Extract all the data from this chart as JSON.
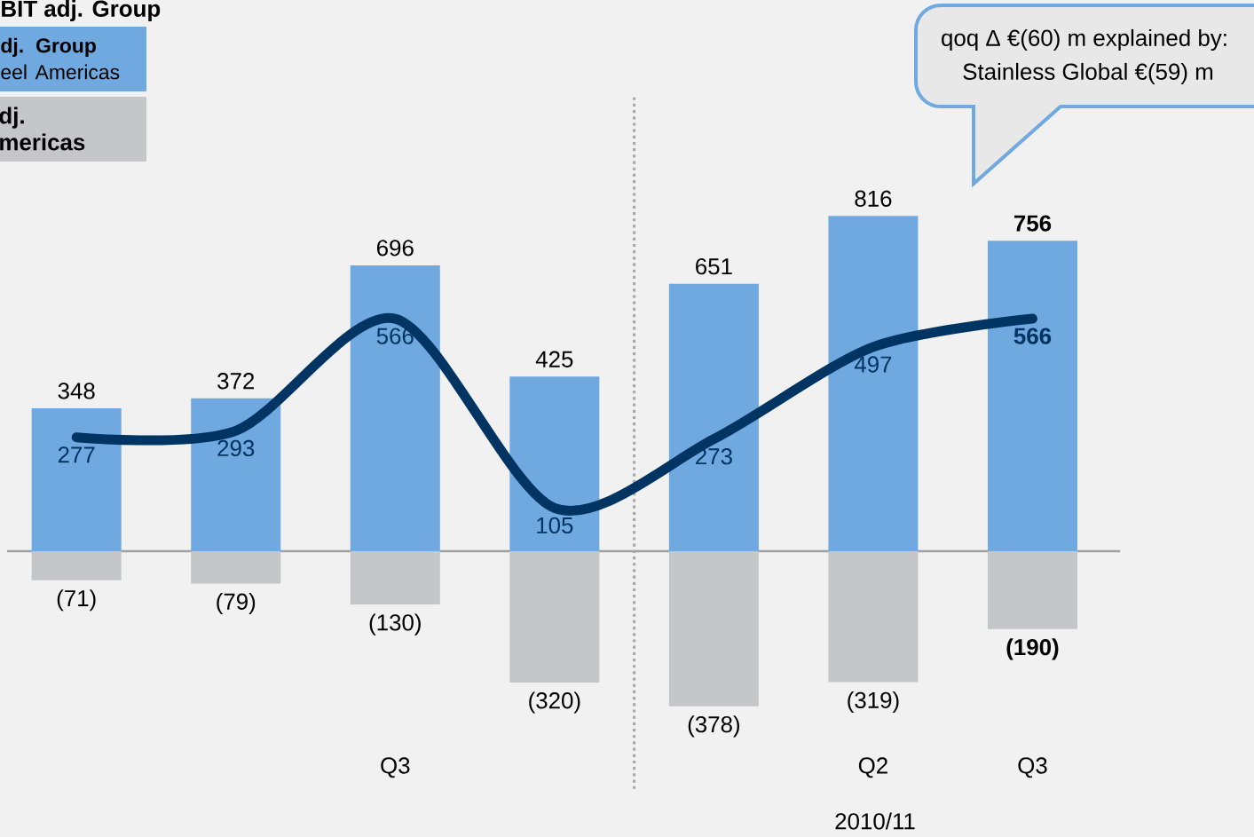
{
  "chart_data": {
    "type": "bar",
    "categories": [
      null,
      null,
      "Q3",
      null,
      null,
      "Q2",
      "Q3"
    ],
    "series": [
      {
        "name": "**dj. Group** eel Americas",
        "color": "#6fa9e0",
        "values": [
          348,
          372,
          696,
          425,
          651,
          816,
          756
        ],
        "value_labels": [
          "348",
          "372",
          "696",
          "425",
          "651",
          "816",
          "**756**"
        ]
      },
      {
        "type": "line",
        "color": "#003462",
        "values": [
          277,
          293,
          566,
          105,
          273,
          497,
          566
        ],
        "value_labels": [
          "277",
          "293",
          "566",
          "105",
          "273",
          "497",
          "**566**"
        ]
      },
      {
        "name": "dj. mericas",
        "color": "#c5c6c8",
        "values": [
          -71,
          -79,
          -130,
          -320,
          -378,
          -319,
          -190
        ],
        "value_labels": [
          "(71)",
          "(79)",
          "(130)",
          "(320)",
          "(378)",
          "(319)",
          "**(190)**"
        ]
      }
    ],
    "legend_title": "BIT adj. Group",
    "legend": "top left",
    "ylim": [
      -696,
      1342
    ],
    "stacked": true,
    "annotations": [
      "qoq Δ €(60) m explained by:",
      "Stainless Global €(59) m",
      "2010/11"
    ]
  }
}
